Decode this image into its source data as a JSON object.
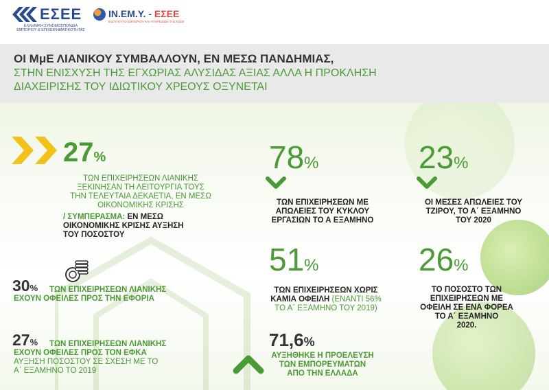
{
  "logos": {
    "esee_name": "ΕΣΕΕ",
    "esee_sub": "ΕΛΛΗΝΙΚΗ ΣΥΝΟΜΟΣΠΟΝΔΙΑ ΕΜΠΟΡΙΟΥ & ΕΠΙΧΕΙΡΗΜΑΤΙΚΟΤΗΤΑΣ",
    "inemy_name": "IN.EM.Y.",
    "inemy_sep": " - ",
    "inemy_esee": "ΕΣΕΕ",
    "inemy_sub": "ΙΝΣΤΙΤΟΥΤΟ ΕΜΠΟΡΙΟΥ ΚΑΙ ΥΠΗΡΕΣΙΩΝ ΤΗΣ ΕΣΕΕ"
  },
  "title": {
    "line1": "ΟΙ ΜμΕ ΛΙΑΝΙΚΟΥ ΣΥΜΒΑΛΛΟΥΝ, ΕΝ ΜΕΣΩ ΠΑΝΔΗΜΙΑΣ,",
    "line2": "ΣΤΗΝ  ΕΝΙΣΧΥΣΗ ΤΗΣ ΕΓΧΩΡΙΑΣ ΑΛΥΣΙΔΑΣ ΑΞΙΑΣ ΑΛΛΑ Η ΠΡΟΚΛΗΣΗ",
    "line3": "ΔΙΑΧΕΙΡΙΣΗΣ ΤΟΥ ΙΔΙΩΤΙΚΟΥ ΧΡΕΟΥΣ ΟΞΥΝΕΤΑΙ"
  },
  "stats": {
    "s27a": {
      "value": "27",
      "unit": "%",
      "text1": "ΤΩΝ ΕΠΙΧΕΙΡΗΣΕΩΝ ΛΙΑΝΙΚΗΣ",
      "text2": "ΞΕΚΙΝΗΣΑΝ ΤΗ ΛΕΙΤΟΥΡΓΙΑ ΤΟΥΣ",
      "text3": "ΤΗΝ ΤΕΛΕΥΤΑΙΑ ΔΕΚΑΕΤΙΑ, ΕΝ ΜΕΣΩ",
      "text4": "ΟΙΚΟΝΟΜΙΚΗΣ ΚΡΙΣΗΣ",
      "conc_label": "/ ΣΥΜΠΕΡΑΣΜΑ:",
      "conc1": " ΕΝ ΜΕΣΩ",
      "conc2": "ΟΙΚΟΝΟΜΙΚΗΣ ΚΡΙΣΗΣ ΑΥΞΗΣΗ",
      "conc3": "ΤΟΥ ΠΟΣΟΣΤΟΥ"
    },
    "s30": {
      "value": "30",
      "unit": "%",
      "text1": "ΤΩΝ ΕΠΙΧΕΙΡΗΣΕΩΝ ΛΙΑΝΙΚΗΣ",
      "text2": "ΕΧΟΥΝ ΟΦΕΙΛΕΣ ΠΡΟΣ ΤΗΝ ΕΦΟΡΙΑ"
    },
    "s27b": {
      "value": "27",
      "unit": "%",
      "text1": "ΤΩΝ ΕΠΙΧΕΙΡΗΣΕΩΝ ΛΙΑΝΙΚΗΣ",
      "text2": "ΕΧΟΥΝ ΟΦΕΙΛΕΣ  ΠΡΟΣ ΤΟΝ ΕΦΚΑ",
      "text3": "ΑΥΞΗΣΗ ΠΟΣΟΣΤΟΥ ΣΕ ΣΧΕΣΗ ΜΕ ΤΟ",
      "text4": "Α΄ ΕΞΑΜΗΝΟ ΤΟ 2019"
    },
    "s78": {
      "value": "78",
      "unit": "%",
      "text1": "ΤΩΝ ΕΠΙΧΕΙΡΗΣΕΩΝ ΜΕ",
      "text2": "ΑΠΩΛΕΙΕΣ ΤΟΥ ΚΥΚΛΟΥ",
      "text3": "ΕΡΓΑΣΙΩΝ ΤΟ Α ΕΞΑΜΗΝΟ"
    },
    "s23": {
      "value": "23",
      "unit": "%",
      "text1": "ΟΙ ΜΕΣΕΣ ΑΠΩΛΕΙΕΣ ΤΟΥ",
      "text2": "ΤΖΙΡΟΥ, ΤΟ Α΄ ΕΞΑΜΗΝΟ",
      "text3": "ΤΟΥ 2020"
    },
    "s51": {
      "value": "51",
      "unit": "%",
      "text1": "ΤΩΝ ΕΠΙΧΕΙΡΗΣΕΩΝ ΧΩΡΙΣ",
      "text2a": "ΚΑΜΙΑ ΟΦΕΙΛΗ",
      "text2b": " (ΕΝΑΝΤΙ 56%",
      "text3": "ΤΟ Α΄ ΕΞΑΜΗΝΟ ΤΟΥ 2019)"
    },
    "s26": {
      "value": "26",
      "unit": "%",
      "text1": "ΤΟ ΠΟΣΟΣΤΟ ΤΩΝ",
      "text2": "ΕΠΙΧΕΙΡΗΣΕΩΝ ΜΕ",
      "text3": "ΟΦΕΙΛΗ ΣΕ ΕΝΑ ΦΟΡΕΑ",
      "text4": "ΤΟ Α΄ ΕΞΑΜΗΝΟ",
      "text5": "2020."
    },
    "s716": {
      "value": "71,6",
      "unit": "%",
      "text1": "ΑΥΞΗΘΗΚΕ Η ΠΡΟΕΛΕΥΣΗ",
      "text2": "ΤΩΝ ΕΜΠΟΡΕΥΜΑΤΩΝ",
      "text3": "ΑΠΟ ΤΗΝ ΕΛΛΑΔΑ"
    }
  },
  "colors": {
    "green": "#4a9a35",
    "yellow": "#f2c21b",
    "blue": "#2a4a8f",
    "red": "#e0463a"
  }
}
